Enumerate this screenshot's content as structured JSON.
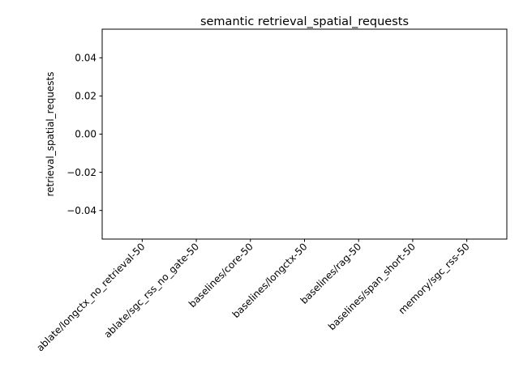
{
  "chart_data": {
    "type": "bar",
    "title": "semantic retrieval_spatial_requests",
    "xlabel": "",
    "ylabel": "retrieval_spatial_requests",
    "categories": [
      "ablate/longctx_no_retrieval-50",
      "ablate/sgc_rss_no_gate-50",
      "baselines/core-50",
      "baselines/longctx-50",
      "baselines/rag-50",
      "baselines/span_short-50",
      "memory/sgc_rss-50"
    ],
    "values": [
      0,
      0,
      0,
      0,
      0,
      0,
      0
    ],
    "ylim": [
      -0.055,
      0.055
    ],
    "yticks": [
      -0.04,
      -0.02,
      0.0,
      0.02,
      0.04
    ],
    "ytick_labels": [
      "−0.04",
      "−0.02",
      "0.00",
      "0.02",
      "0.04"
    ],
    "grid": false,
    "legend": "none",
    "bar_color": "#1f77b4"
  }
}
